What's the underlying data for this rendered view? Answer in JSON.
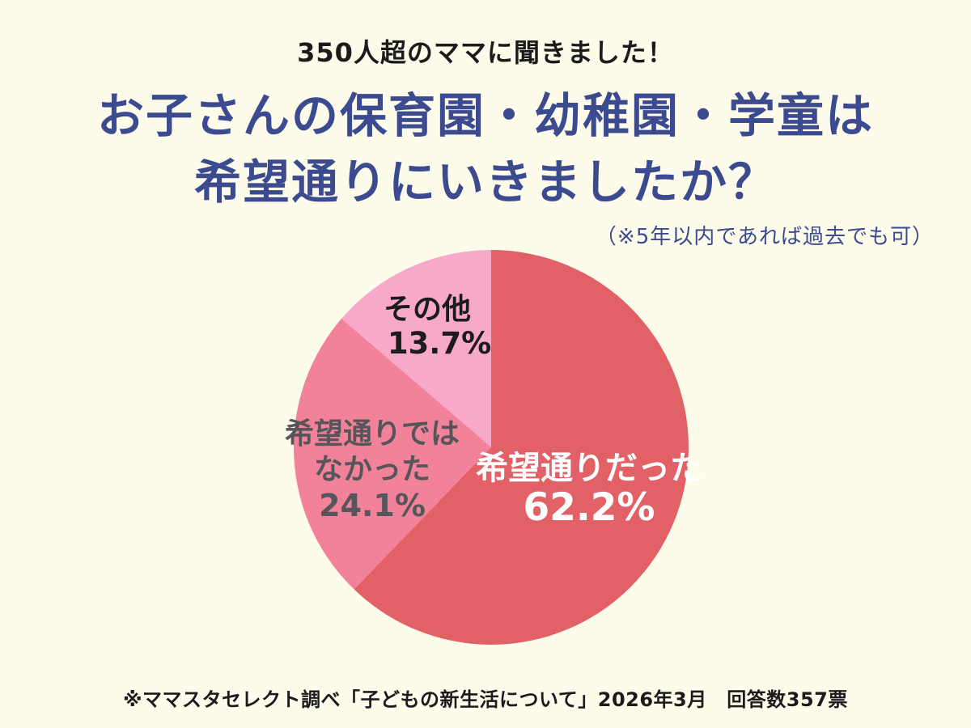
{
  "page": {
    "background": "#FDFCEB",
    "title_color": "#3C4A8F"
  },
  "header": {
    "eyebrow": "350人超のママに聞きました！",
    "title_lines": [
      "お子さんの保育園・幼稚園・学童は",
      "希望通りにいきましたか？"
    ],
    "note": "（※5年以内であれば過去でも可）"
  },
  "chart_data": {
    "type": "pie",
    "title": "お子さんの保育園・幼稚園・学童は希望通りにいきましたか？",
    "categories": [
      "希望通りだった",
      "希望通りではなかった",
      "その他"
    ],
    "values": [
      62.2,
      24.1,
      13.7
    ],
    "unit": "%",
    "start_angle": "12時の位置から時計回り",
    "legend_position": "labels-inside-slices",
    "slices": [
      {
        "label": "希望通りだった",
        "label_lines": [
          "希望通りだった"
        ],
        "value": 62.2,
        "value_text": "62.2%",
        "color": "#E26167",
        "text_color": "#FFFFFF"
      },
      {
        "label": "希望通りではなかった",
        "label_lines": [
          "希望通りでは",
          "なかった"
        ],
        "value": 24.1,
        "value_text": "24.1%",
        "color": "#F28299",
        "text_color": "#55555A"
      },
      {
        "label": "その他",
        "label_lines": [
          "その他"
        ],
        "value": 13.7,
        "value_text": "13.7%",
        "color": "#F8A9C9",
        "text_color": "#1C1C1C"
      }
    ]
  },
  "footer": {
    "source": "※ママスタセレクト調べ「子どもの新生活について」2026年3月　回答数357票"
  }
}
